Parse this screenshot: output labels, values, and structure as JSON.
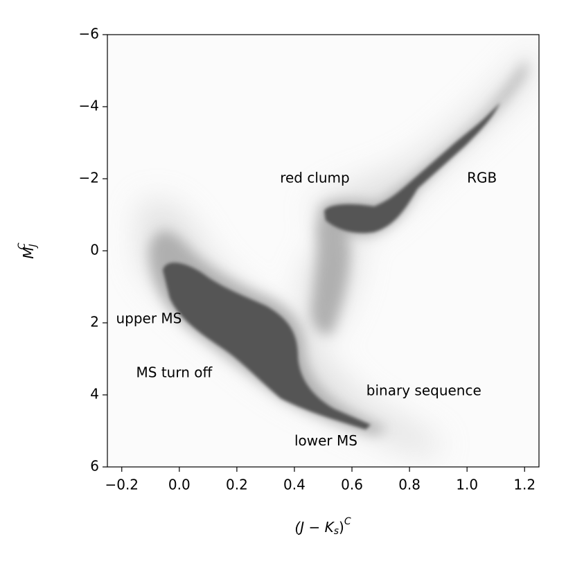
{
  "chart_data": {
    "type": "density",
    "xlabel_parts": [
      "(J − K",
      "s",
      ")",
      "C"
    ],
    "ylabel_parts": [
      "M",
      "J",
      "C"
    ],
    "xlim": [
      -0.25,
      1.25
    ],
    "ylim": [
      6,
      -6
    ],
    "xticks": [
      {
        "value": -0.2,
        "label": "−0.2"
      },
      {
        "value": 0.0,
        "label": "0.0"
      },
      {
        "value": 0.2,
        "label": "0.2"
      },
      {
        "value": 0.4,
        "label": "0.4"
      },
      {
        "value": 0.6,
        "label": "0.6"
      },
      {
        "value": 0.8,
        "label": "0.8"
      },
      {
        "value": 1.0,
        "label": "1.0"
      },
      {
        "value": 1.2,
        "label": "1.2"
      }
    ],
    "yticks": [
      {
        "value": -6,
        "label": "−6"
      },
      {
        "value": -4,
        "label": "−4"
      },
      {
        "value": -2,
        "label": "−2"
      },
      0,
      2,
      4,
      6
    ],
    "annotations": [
      {
        "text": "red clump",
        "x": 0.35,
        "y": -2.0
      },
      {
        "text": "RGB",
        "x": 1.0,
        "y": -2.0
      },
      {
        "text": "upper MS",
        "x": -0.22,
        "y": 1.9
      },
      {
        "text": "MS turn off",
        "x": -0.15,
        "y": 3.4
      },
      {
        "text": "binary sequence",
        "x": 0.65,
        "y": 3.9
      },
      {
        "text": "lower MS",
        "x": 0.4,
        "y": 5.3
      }
    ]
  }
}
